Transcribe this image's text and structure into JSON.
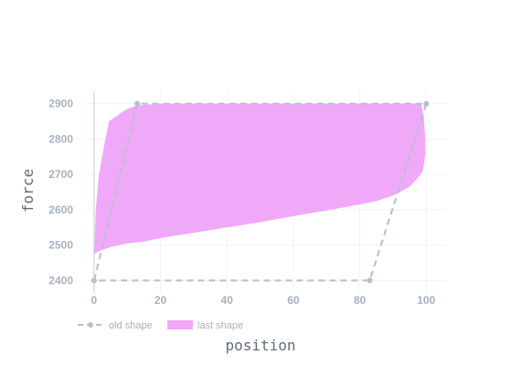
{
  "chart_data": {
    "type": "area",
    "xlabel": "position",
    "ylabel": "force",
    "xlim": [
      -3,
      106
    ],
    "ylim": [
      2365,
      2935
    ],
    "x_ticks": [
      0,
      20,
      40,
      60,
      80,
      100
    ],
    "y_ticks": [
      2400,
      2500,
      2600,
      2700,
      2800,
      2900
    ],
    "x_tick_labels": [
      "0",
      "20",
      "40",
      "60",
      "80",
      "100"
    ],
    "y_tick_labels": [
      "2400",
      "2500",
      "2600",
      "2700",
      "2800",
      "2900"
    ],
    "grid": true,
    "legend_position": "bottom-left",
    "series": [
      {
        "name": "old shape",
        "style": "dashed-line-markers",
        "color": "#b5bfca",
        "x": [
          0,
          13,
          100,
          83,
          0
        ],
        "y": [
          2400,
          2900,
          2900,
          2400,
          2400
        ]
      },
      {
        "name": "last shape",
        "style": "filled-area",
        "color": "#f0a9f8",
        "x": [
          0,
          0.5,
          1.5,
          3,
          4.5,
          6,
          7.5,
          10,
          13,
          20,
          40,
          60,
          80,
          90,
          95,
          98.5,
          99.3,
          99.7,
          99.8,
          99,
          97.5,
          95,
          90,
          85,
          80,
          70,
          60,
          50,
          40,
          30,
          20,
          15,
          10,
          5,
          2,
          0.5,
          0
        ],
        "y": [
          2470,
          2600,
          2700,
          2780,
          2850,
          2860,
          2870,
          2885,
          2895,
          2900,
          2900,
          2900,
          2900,
          2900,
          2900,
          2900,
          2860,
          2800,
          2760,
          2710,
          2690,
          2665,
          2640,
          2625,
          2615,
          2598,
          2582,
          2565,
          2550,
          2535,
          2520,
          2510,
          2505,
          2495,
          2485,
          2478,
          2470
        ]
      }
    ]
  }
}
